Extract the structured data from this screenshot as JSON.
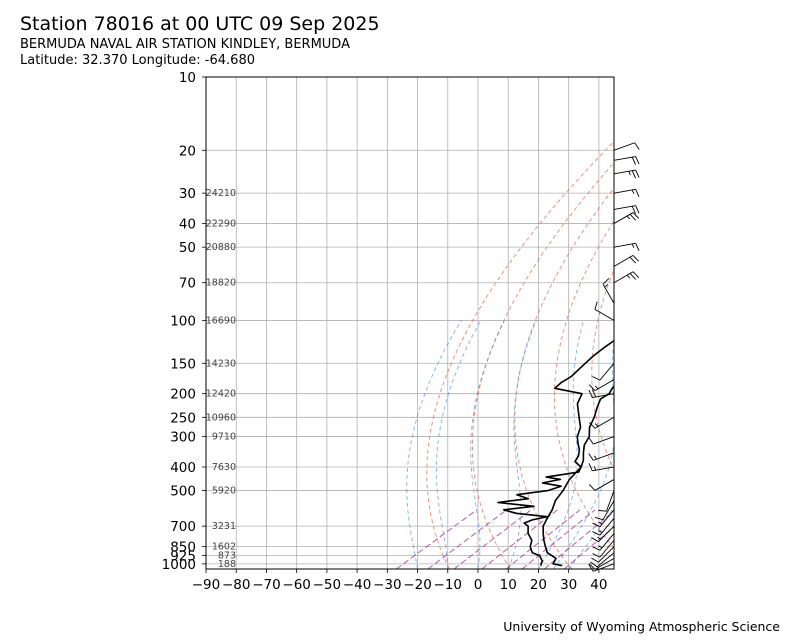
{
  "header": {
    "title": "Station 78016 at 00 UTC 09 Sep 2025",
    "station": "BERMUDA NAVAL AIR STATION KINDLEY, BERMUDA",
    "location": "Latitude: 32.370 Longitude: -64.680"
  },
  "footer": {
    "credit": "University of Wyoming Atmospheric Science"
  },
  "chart_data": {
    "type": "line",
    "subtype": "skew-t log-p sounding",
    "xlabel": "",
    "ylabel": "",
    "x_ticks": [
      -90,
      -80,
      -70,
      -60,
      -50,
      -40,
      -30,
      -20,
      -10,
      0,
      10,
      20,
      30,
      40
    ],
    "y_ticks": [
      10,
      20,
      30,
      40,
      50,
      70,
      100,
      150,
      200,
      250,
      300,
      400,
      500,
      700,
      850,
      925,
      1000
    ],
    "xlim": [
      -90,
      45
    ],
    "ylim_pressure_hpa": [
      1050,
      10
    ],
    "y_scale": "log",
    "grid": true,
    "height_labels": [
      {
        "p": 30,
        "h": "24210"
      },
      {
        "p": 40,
        "h": "22290"
      },
      {
        "p": 50,
        "h": "20880"
      },
      {
        "p": 70,
        "h": "18820"
      },
      {
        "p": 100,
        "h": "16690"
      },
      {
        "p": 150,
        "h": "14230"
      },
      {
        "p": 200,
        "h": "12420"
      },
      {
        "p": 250,
        "h": "10960"
      },
      {
        "p": 300,
        "h": "9710"
      },
      {
        "p": 400,
        "h": "7630"
      },
      {
        "p": 500,
        "h": "5920"
      },
      {
        "p": 700,
        "h": "3231"
      },
      {
        "p": 850,
        "h": "1602"
      },
      {
        "p": 925,
        "h": "873"
      },
      {
        "p": 1000,
        "h": "188"
      }
    ],
    "series": [
      {
        "role": "temperature",
        "color": "#000000",
        "points": [
          [
            1017,
            26
          ],
          [
            1000,
            22
          ],
          [
            975,
            21
          ],
          [
            950,
            20
          ],
          [
            925,
            17
          ],
          [
            900,
            14
          ],
          [
            850,
            10
          ],
          [
            800,
            6
          ],
          [
            750,
            2
          ],
          [
            700,
            -2
          ],
          [
            650,
            -5
          ],
          [
            600,
            -8
          ],
          [
            550,
            -12
          ],
          [
            500,
            -15
          ],
          [
            450,
            -19
          ],
          [
            400,
            -22
          ],
          [
            375,
            -25
          ],
          [
            350,
            -29
          ],
          [
            325,
            -33
          ],
          [
            300,
            -36
          ],
          [
            275,
            -41
          ],
          [
            250,
            -45
          ],
          [
            225,
            -50
          ],
          [
            210,
            -53
          ],
          [
            200,
            -53
          ],
          [
            190,
            -55
          ],
          [
            170,
            -57
          ],
          [
            155,
            -59
          ],
          [
            150,
            -60
          ],
          [
            130,
            -63
          ],
          [
            115,
            -66
          ],
          [
            110,
            -63
          ],
          [
            100,
            -64
          ],
          [
            90,
            -64
          ],
          [
            80,
            -64
          ],
          [
            70,
            -64
          ],
          [
            60,
            -60
          ],
          [
            55,
            -57
          ],
          [
            50,
            -54
          ],
          [
            45,
            -53
          ],
          [
            40,
            -53
          ],
          [
            35,
            -52
          ],
          [
            30,
            -51
          ],
          [
            27,
            -47
          ],
          [
            25,
            -47
          ],
          [
            23,
            -48
          ],
          [
            21,
            -47
          ],
          [
            20,
            -47
          ]
        ]
      },
      {
        "role": "dewpoint",
        "color": "#000000",
        "points": [
          [
            1017,
            19
          ],
          [
            1000,
            18
          ],
          [
            975,
            17
          ],
          [
            950,
            15
          ],
          [
            925,
            13
          ],
          [
            900,
            9
          ],
          [
            850,
            5
          ],
          [
            800,
            2
          ],
          [
            750,
            -3
          ],
          [
            700,
            -7
          ],
          [
            680,
            -10
          ],
          [
            660,
            -9
          ],
          [
            640,
            -6
          ],
          [
            620,
            -18
          ],
          [
            600,
            -24
          ],
          [
            580,
            -16
          ],
          [
            560,
            -30
          ],
          [
            540,
            -22
          ],
          [
            520,
            -28
          ],
          [
            500,
            -20
          ],
          [
            480,
            -18
          ],
          [
            465,
            -26
          ],
          [
            450,
            -22
          ],
          [
            440,
            -28
          ],
          [
            420,
            -20
          ],
          [
            400,
            -22
          ],
          [
            380,
            -27
          ],
          [
            360,
            -29
          ],
          [
            340,
            -32
          ],
          [
            320,
            -36
          ],
          [
            300,
            -40
          ],
          [
            275,
            -44
          ],
          [
            250,
            -50
          ],
          [
            220,
            -58
          ],
          [
            200,
            -62
          ],
          [
            190,
            -74
          ],
          [
            180,
            -75
          ],
          [
            170,
            -75
          ],
          [
            155,
            -77
          ],
          [
            140,
            -79
          ],
          [
            130,
            -80
          ],
          [
            115,
            -81
          ],
          [
            100,
            -81
          ],
          [
            85,
            -82
          ],
          [
            70,
            -83
          ],
          [
            60,
            -82
          ],
          [
            50,
            -79
          ],
          [
            45,
            -78
          ],
          [
            40,
            -78
          ],
          [
            35,
            -78
          ],
          [
            30,
            -77
          ],
          [
            25,
            -76
          ],
          [
            22,
            -75
          ],
          [
            20,
            -73
          ]
        ]
      }
    ],
    "dry_adiabats_theta_K": [
      260,
      280,
      300,
      320,
      340,
      360,
      380,
      400,
      420,
      440,
      460,
      480,
      500
    ],
    "moist_adiabats_C": [
      -20,
      -10,
      0,
      10,
      20,
      25,
      30
    ],
    "mixing_ratio_g_kg": [
      0.4,
      1,
      2,
      4,
      7,
      10,
      16,
      24
    ],
    "wind_barbs": [
      {
        "p": 1000,
        "dir": 250,
        "spd": 10
      },
      {
        "p": 950,
        "dir": 240,
        "spd": 10
      },
      {
        "p": 900,
        "dir": 230,
        "spd": 10
      },
      {
        "p": 850,
        "dir": 225,
        "spd": 10
      },
      {
        "p": 800,
        "dir": 220,
        "spd": 10
      },
      {
        "p": 750,
        "dir": 220,
        "spd": 15
      },
      {
        "p": 700,
        "dir": 225,
        "spd": 15
      },
      {
        "p": 650,
        "dir": 220,
        "spd": 15
      },
      {
        "p": 600,
        "dir": 220,
        "spd": 15
      },
      {
        "p": 550,
        "dir": 210,
        "spd": 10
      },
      {
        "p": 500,
        "dir": 200,
        "spd": 10
      },
      {
        "p": 450,
        "dir": 240,
        "spd": 10
      },
      {
        "p": 400,
        "dir": 260,
        "spd": 15
      },
      {
        "p": 350,
        "dir": 250,
        "spd": 15
      },
      {
        "p": 300,
        "dir": 250,
        "spd": 10
      },
      {
        "p": 250,
        "dir": 240,
        "spd": 15
      },
      {
        "p": 200,
        "dir": 260,
        "spd": 20
      },
      {
        "p": 175,
        "dir": 240,
        "spd": 15
      },
      {
        "p": 150,
        "dir": 220,
        "spd": 10
      },
      {
        "p": 100,
        "dir": 300,
        "spd": 10
      },
      {
        "p": 85,
        "dir": 330,
        "spd": 15
      },
      {
        "p": 70,
        "dir": 60,
        "spd": 25
      },
      {
        "p": 60,
        "dir": 60,
        "spd": 20
      },
      {
        "p": 50,
        "dir": 80,
        "spd": 15
      },
      {
        "p": 40,
        "dir": 60,
        "spd": 25
      },
      {
        "p": 35,
        "dir": 80,
        "spd": 20
      },
      {
        "p": 30,
        "dir": 80,
        "spd": 15
      },
      {
        "p": 25,
        "dir": 80,
        "spd": 25
      },
      {
        "p": 22,
        "dir": 80,
        "spd": 20
      },
      {
        "p": 20,
        "dir": 70,
        "spd": 10
      }
    ]
  }
}
